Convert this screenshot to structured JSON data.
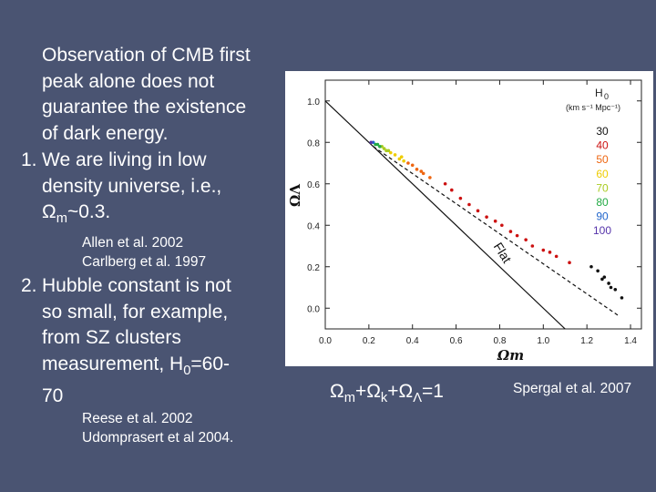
{
  "slide": {
    "intro_lines": [
      "Observation of CMB first",
      "peak alone does not",
      "guarantee the existence",
      "of dark energy."
    ],
    "item1_number": "1.",
    "item1_lines": [
      "We are living in low",
      "density universe, i.e.,"
    ],
    "item1_omega": "Ω",
    "item1_sub": "m",
    "item1_value": "~0.3.",
    "refs1": [
      "Allen et al. 2002",
      "Carlberg et al. 1997"
    ],
    "item2_number": "2.",
    "item2_lines": [
      "Hubble constant is not",
      "so small, for example,",
      "from SZ clusters"
    ],
    "item2_h0_prefix": "measurement, H",
    "item2_h0_sub": "0",
    "item2_h0_value": "=60-",
    "item2_last": "70",
    "refs2": [
      "Reese et al. 2002",
      "Udomprasert et al 2004."
    ],
    "formula": {
      "omega": "Ω",
      "m": "m",
      "plus1": "+",
      "k": "k",
      "plus2": "+",
      "lambda": "Λ",
      "eq": "=1"
    },
    "credit": "Spergal et al. 2007"
  },
  "chart_data": {
    "type": "scatter",
    "xlabel": "Ωm",
    "ylabel": "ΩΛ",
    "xlim": [
      0.0,
      1.45
    ],
    "ylim": [
      -0.1,
      1.1
    ],
    "xticks": [
      "0.0",
      "0.2",
      "0.4",
      "0.6",
      "0.8",
      "1.0",
      "1.2",
      "1.4"
    ],
    "yticks": [
      "0.0",
      "0.2",
      "0.4",
      "0.6",
      "0.8",
      "1.0"
    ],
    "grid": false,
    "lines": [
      {
        "label": "Flat",
        "style": "solid",
        "x": [
          0.0,
          1.1
        ],
        "y": [
          1.0,
          -0.1
        ]
      },
      {
        "label": "",
        "style": "dashed",
        "x": [
          0.22,
          1.35
        ],
        "y": [
          0.78,
          -0.04
        ]
      }
    ],
    "annotation": "Flat",
    "legend": {
      "title_main": "H",
      "title_sub": "0",
      "title_units": "(km s⁻¹ Mpc⁻¹)",
      "position": "top-right"
    },
    "series": [
      {
        "name": "30",
        "color": "#111111",
        "points": [
          [
            1.25,
            0.18
          ],
          [
            1.3,
            0.12
          ],
          [
            1.33,
            0.09
          ],
          [
            1.28,
            0.15
          ],
          [
            1.36,
            0.05
          ],
          [
            1.22,
            0.2
          ],
          [
            1.31,
            0.1
          ],
          [
            1.27,
            0.14
          ]
        ]
      },
      {
        "name": "40",
        "color": "#cc1111",
        "points": [
          [
            0.55,
            0.6
          ],
          [
            0.62,
            0.53
          ],
          [
            0.7,
            0.47
          ],
          [
            0.78,
            0.42
          ],
          [
            0.85,
            0.37
          ],
          [
            0.92,
            0.33
          ],
          [
            1.0,
            0.28
          ],
          [
            1.06,
            0.25
          ],
          [
            1.12,
            0.22
          ],
          [
            0.66,
            0.5
          ],
          [
            0.74,
            0.44
          ],
          [
            0.88,
            0.35
          ],
          [
            0.95,
            0.3
          ],
          [
            1.03,
            0.27
          ],
          [
            0.58,
            0.57
          ],
          [
            0.81,
            0.4
          ]
        ]
      },
      {
        "name": "50",
        "color": "#ee6611",
        "points": [
          [
            0.38,
            0.7
          ],
          [
            0.42,
            0.67
          ],
          [
            0.45,
            0.65
          ],
          [
            0.48,
            0.63
          ],
          [
            0.4,
            0.69
          ],
          [
            0.44,
            0.66
          ]
        ]
      },
      {
        "name": "60",
        "color": "#eecc00",
        "points": [
          [
            0.32,
            0.74
          ],
          [
            0.34,
            0.72
          ],
          [
            0.36,
            0.71
          ],
          [
            0.3,
            0.75
          ],
          [
            0.35,
            0.73
          ]
        ]
      },
      {
        "name": "70",
        "color": "#aacc22",
        "points": [
          [
            0.27,
            0.77
          ],
          [
            0.28,
            0.76
          ],
          [
            0.29,
            0.76
          ],
          [
            0.26,
            0.78
          ]
        ]
      },
      {
        "name": "80",
        "color": "#22aa44",
        "points": [
          [
            0.24,
            0.79
          ],
          [
            0.25,
            0.78
          ],
          [
            0.23,
            0.79
          ]
        ]
      },
      {
        "name": "90",
        "color": "#2266cc",
        "points": [
          [
            0.22,
            0.8
          ]
        ]
      },
      {
        "name": "100",
        "color": "#5533aa",
        "points": [
          [
            0.21,
            0.8
          ]
        ]
      }
    ]
  }
}
